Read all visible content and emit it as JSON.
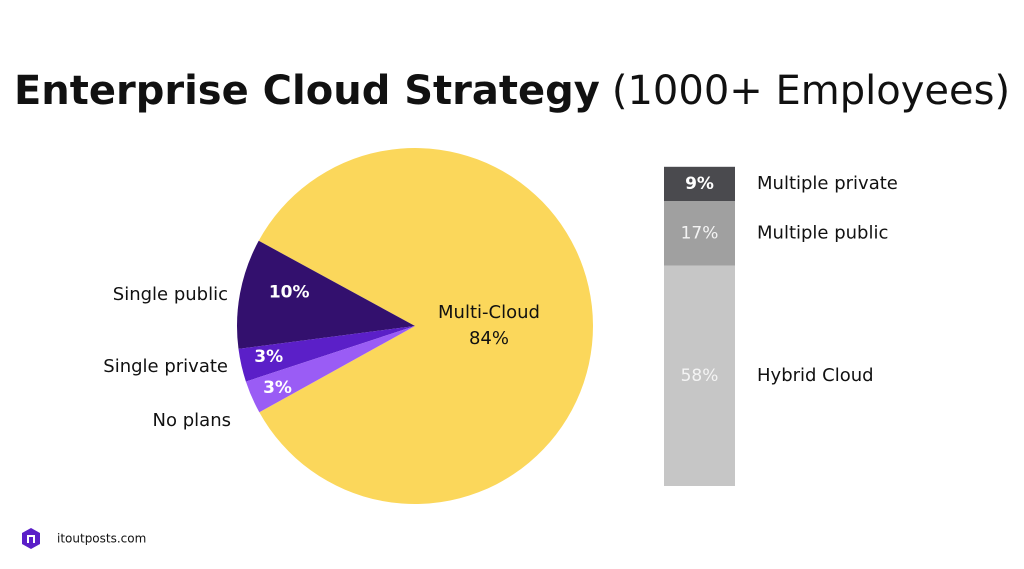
{
  "title": "Enterprise Cloud Strategy",
  "subtitle": "(1000+ Employees)",
  "footer": "itoutposts.com",
  "chart_data": [
    {
      "type": "pie",
      "categories": [
        "Multi-Cloud",
        "Single public",
        "Single private",
        "No plans"
      ],
      "values": [
        84,
        10,
        3,
        3
      ],
      "value_labels": [
        "84%",
        "10%",
        "3%",
        "3%"
      ],
      "colors": [
        "#fbd75b",
        "#33106e",
        "#5b1fc8",
        "#9a5cf5"
      ]
    },
    {
      "type": "stacked-bar",
      "categories": [
        "Hybrid Cloud",
        "Multiple public",
        "Multiple private"
      ],
      "values": [
        58,
        17,
        9
      ],
      "value_labels": [
        "58%",
        "17%",
        "9%"
      ],
      "colors": [
        "#c6c6c6",
        "#a0a0a0",
        "#4a4a4e"
      ]
    }
  ]
}
